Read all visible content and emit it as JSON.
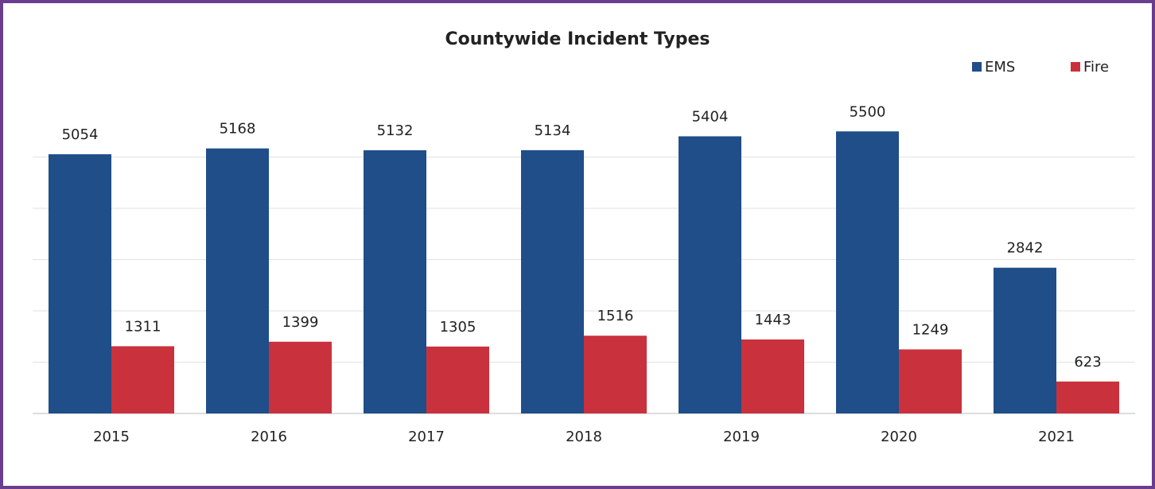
{
  "chart_data": {
    "type": "bar",
    "title": "Countywide Incident Types",
    "categories": [
      "2015",
      "2016",
      "2017",
      "2018",
      "2019",
      "2020",
      "2021"
    ],
    "series": [
      {
        "name": "EMS",
        "color": "#1f4e89",
        "values": [
          5054,
          5168,
          5132,
          5134,
          5404,
          5500,
          2842
        ]
      },
      {
        "name": "Fire",
        "color": "#c9313d",
        "values": [
          1311,
          1399,
          1305,
          1516,
          1443,
          1249,
          623
        ]
      }
    ],
    "ylim": [
      0,
      6000
    ],
    "yticks": [
      0,
      1000,
      2000,
      3000,
      4000,
      5000
    ],
    "grid": true,
    "legend": "top-right"
  }
}
